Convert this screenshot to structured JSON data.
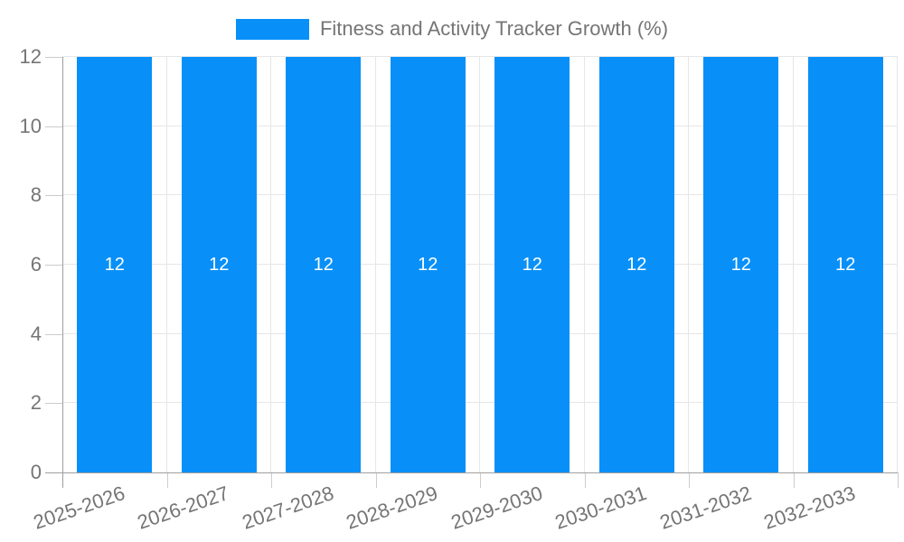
{
  "chart_data": {
    "type": "bar",
    "title": "Fitness and Activity Tracker Growth (%)",
    "categories": [
      "2025-2026",
      "2026-2027",
      "2027-2028",
      "2028-2029",
      "2029-2030",
      "2030-2031",
      "2031-2032",
      "2032-2033"
    ],
    "series": [
      {
        "name": "Fitness and Activity Tracker Growth (%)",
        "values": [
          12,
          12,
          12,
          12,
          12,
          12,
          12,
          12
        ]
      }
    ],
    "bar_value_labels": [
      "12",
      "12",
      "12",
      "12",
      "12",
      "12",
      "12",
      "12"
    ],
    "xlabel": "",
    "ylabel": "",
    "ylim": [
      0,
      12
    ],
    "yticks": [
      0,
      2,
      4,
      6,
      8,
      10,
      12
    ],
    "grid": true,
    "legend_position": "top-center"
  },
  "colors": {
    "bar": "#0890F8",
    "axis_text": "#757575",
    "legend_text": "#757575",
    "value_label": "#FFFFFF",
    "gridline": "#E6E6E6",
    "tick": "#CCCCCC",
    "axis_line": "#9E9E9E",
    "background": "#FFFFFF"
  }
}
